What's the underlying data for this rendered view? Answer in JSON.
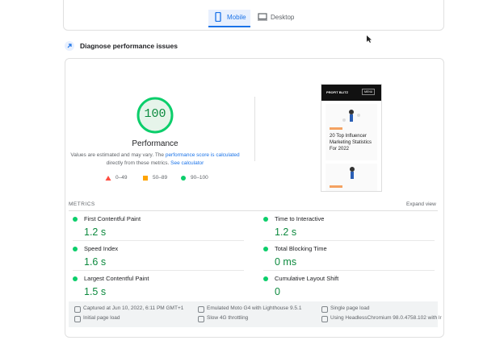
{
  "tabs": [
    "Mobile",
    "Desktop"
  ],
  "section_title": "Diagnose performance issues",
  "score": {
    "value": "100",
    "label": "Performance"
  },
  "note": {
    "text1": "Values are estimated and may vary. The ",
    "link1": "performance score is calculated",
    "text2": "directly from these metrics. ",
    "link2": "See calculator"
  },
  "legend": [
    "0–49",
    "50–89",
    "90–100"
  ],
  "preview": {
    "brand": "PROFIT BLITZ",
    "menu": "MENU",
    "headline": "20 Top Influencer Marketing Statistics For 2022"
  },
  "metrics": {
    "heading": "METRICS",
    "expand": "Expand view",
    "items": [
      {
        "label": "First Contentful Paint",
        "value": "1.2 s"
      },
      {
        "label": "Time to Interactive",
        "value": "1.2 s"
      },
      {
        "label": "Speed Index",
        "value": "1.6 s"
      },
      {
        "label": "Total Blocking Time",
        "value": "0 ms"
      },
      {
        "label": "Largest Contentful Paint",
        "value": "1.5 s"
      },
      {
        "label": "Cumulative Layout Shift",
        "value": "0"
      }
    ]
  },
  "footer": [
    "Captured at Jun 10, 2022, 6:11 PM GMT+1",
    "Emulated Moto G4 with Lighthouse 9.5.1",
    "Single page load",
    "Initial page load",
    "Slow 4G throttling",
    "Using HeadlessChromium 98.0.4758.102 with lr"
  ]
}
